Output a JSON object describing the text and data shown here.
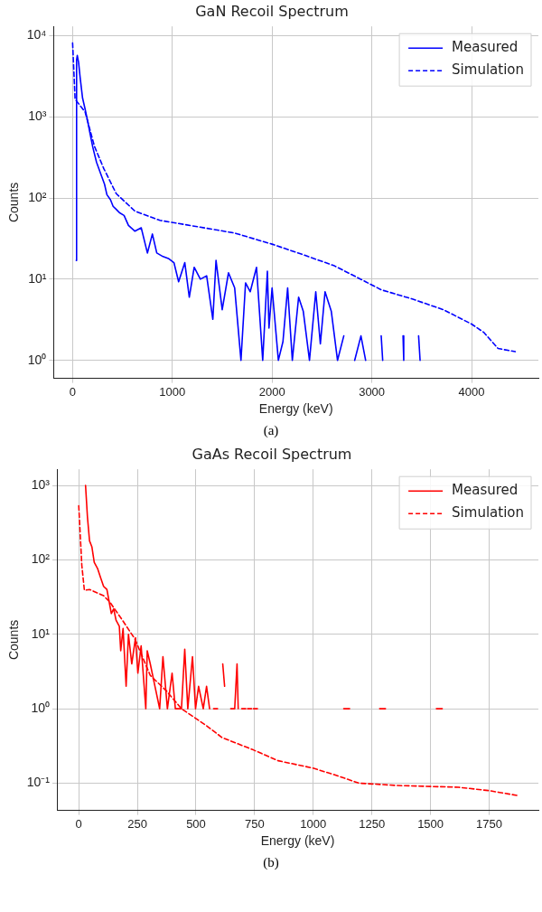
{
  "chart_data": [
    {
      "type": "line",
      "title": "GaN Recoil Spectrum",
      "xlabel": "Energy (keV)",
      "ylabel": "Counts",
      "log": "y",
      "grid": true,
      "legend": "top right",
      "xlim": [
        -190,
        4670
      ],
      "ylim": [
        0.6,
        13000
      ],
      "xticks": [
        0,
        1000,
        2000,
        3000,
        4000
      ],
      "yticks": [
        {
          "value": 1,
          "label": "10⁰"
        },
        {
          "value": 10,
          "label": "10¹"
        },
        {
          "value": 100,
          "label": "10²"
        },
        {
          "value": 1000,
          "label": "10³"
        },
        {
          "value": 10000,
          "label": "10⁴"
        }
      ],
      "annotations": [
        "(a)"
      ],
      "series": [
        {
          "name": "Measured",
          "color": "#0000ff",
          "line_style": "solid",
          "x": [
            37,
            40,
            47,
            60,
            75,
            100,
            125,
            150,
            175,
            203,
            240,
            281,
            320,
            344,
            380,
            406,
            440,
            469,
            516,
            560,
            625,
            688,
            750,
            800,
            844,
            906,
            960,
            1016,
            1063,
            1125,
            1170,
            1219,
            1281,
            1344,
            1406,
            1438,
            1500,
            1563,
            1625,
            1688,
            1734,
            1781,
            1844,
            1906,
            1953,
            1969,
            2000,
            2063,
            2109,
            2156,
            2203,
            2266,
            2313,
            2375,
            2438,
            2484,
            2531,
            2594,
            2656,
            2719,
            2781,
            2828,
            2891,
            2938,
            2969,
            3094,
            3109,
            3200,
            3313,
            3320,
            3400,
            3469,
            3484
          ],
          "values": [
            17,
            5000,
            5700,
            4700,
            3100,
            1700,
            1250,
            900,
            620,
            420,
            276,
            200,
            148,
            110,
            95,
            79,
            72,
            66,
            61,
            46,
            39,
            43,
            21,
            36,
            21,
            19,
            18,
            16,
            9.3,
            16,
            6,
            14,
            10,
            11,
            3.2,
            17,
            4.2,
            12,
            7.8,
            1,
            9,
            7,
            14,
            1,
            12.5,
            2.5,
            7.8,
            1,
            1.7,
            7.8,
            1,
            6,
            4,
            1,
            7,
            1.6,
            7,
            4,
            1,
            2,
            null,
            1,
            2,
            1,
            null,
            2,
            1,
            null,
            2,
            1,
            null,
            2,
            1
          ]
        },
        {
          "name": "Simulation",
          "color": "#0000ff",
          "line_style": "dashed",
          "x": [
            0,
            25,
            125,
            219,
            313,
            438,
            625,
            875,
            1219,
            1625,
            2000,
            2313,
            2625,
            2938,
            3094,
            3406,
            3719,
            4000,
            4125,
            4266,
            4438
          ],
          "values": [
            8100,
            1650,
            1150,
            434,
            230,
            113,
            69,
            53,
            45,
            37,
            27,
            20,
            14.6,
            9.3,
            7.4,
            5.7,
            4.2,
            2.8,
            2.2,
            1.4,
            1.28
          ]
        }
      ]
    },
    {
      "type": "line",
      "title": "GaAs Recoil Spectrum",
      "xlabel": "Energy (keV)",
      "ylabel": "Counts",
      "log": "y",
      "grid": true,
      "legend": "top right",
      "xlim": [
        -93,
        1960
      ],
      "ylim": [
        0.043,
        1650
      ],
      "xticks": [
        0,
        250,
        500,
        750,
        1000,
        1250,
        1500,
        1750
      ],
      "yticks": [
        {
          "value": 0.1,
          "label": "10⁻¹"
        },
        {
          "value": 1,
          "label": "10⁰"
        },
        {
          "value": 10,
          "label": "10¹"
        },
        {
          "value": 100,
          "label": "10²"
        },
        {
          "value": 1000,
          "label": "10³"
        }
      ],
      "annotations": [
        "(b)"
      ],
      "series": [
        {
          "name": "Measured",
          "color": "#ff0000",
          "line_style": "solid",
          "x": [
            29,
            37,
            46,
            56,
            66,
            80,
            93,
            106,
            120,
            130,
            139,
            149,
            159,
            173,
            179,
            189,
            202,
            212,
            226,
            242,
            252,
            266,
            286,
            292,
            305,
            325,
            345,
            359,
            378,
            398,
            412,
            438,
            452,
            465,
            485,
            498,
            511,
            531,
            545,
            558,
            566,
            575,
            592,
            600,
            614,
            622,
            635,
            648,
            665,
            675,
            680,
            690,
            695,
            712,
            716,
            720,
            737,
            740,
            745,
            762,
            900,
            1130,
            1155,
            1200,
            1283,
            1308,
            1400,
            1525,
            1550
          ],
          "values": [
            1000,
            380,
            180,
            150,
            93,
            77,
            58,
            44,
            40,
            27,
            19,
            22,
            15.5,
            12.8,
            6,
            12,
            2,
            10,
            4,
            9,
            3,
            7,
            1,
            6,
            4,
            2,
            1,
            5,
            1,
            3,
            1,
            1,
            6.3,
            1,
            5,
            1,
            2,
            1,
            2,
            1,
            null,
            1,
            1,
            null,
            4,
            2,
            null,
            1,
            1,
            4,
            1,
            null,
            1,
            1,
            null,
            1,
            1,
            null,
            1,
            1,
            null,
            1,
            1,
            null,
            1,
            1,
            null,
            1,
            1
          ]
        },
        {
          "name": "Simulation",
          "color": "#ff0000",
          "line_style": "dashed",
          "x": [
            0,
            13,
            24,
            46,
            106,
            133,
            186,
            239,
            305,
            372,
            438,
            505,
            545,
            611,
            744,
            850,
            996,
            1089,
            1195,
            1355,
            1620,
            1753,
            1873
          ],
          "values": [
            535,
            85,
            39,
            40,
            33,
            27,
            15.5,
            8.7,
            2.8,
            1.76,
            1,
            0.72,
            0.59,
            0.41,
            0.28,
            0.2,
            0.16,
            0.13,
            0.1,
            0.093,
            0.088,
            0.079,
            0.068
          ]
        }
      ]
    }
  ]
}
